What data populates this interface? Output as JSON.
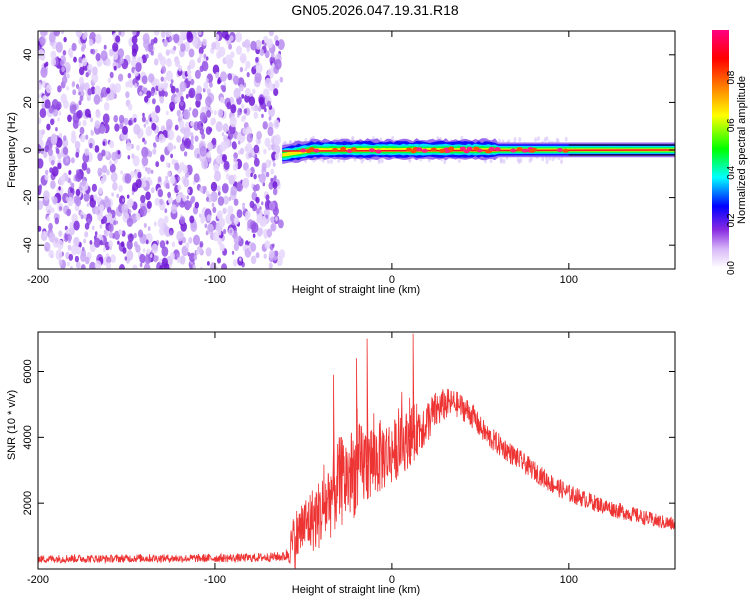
{
  "title": "GN05.2026.047.19.31.R18",
  "chart_data": [
    {
      "type": "heatmap",
      "name": "spectrogram",
      "xlabel": "Height of straight line (km)",
      "ylabel": "Frequency (Hz)",
      "xlim": [
        -200,
        160
      ],
      "ylim": [
        -50,
        50
      ],
      "xticks": [
        -200,
        -100,
        0,
        100
      ],
      "yticks": [
        -40,
        -20,
        0,
        20,
        40
      ],
      "noise_region_x": [
        -200,
        -62
      ],
      "signal_region_x": [
        -62,
        160
      ],
      "signal_center_frequency": 0,
      "colorbar": {
        "label": "Normalized spectral amplitude",
        "range": [
          0,
          1
        ],
        "ticks": [
          0.0,
          0.2,
          0.4,
          0.6,
          0.8
        ],
        "colormap": "rainbow",
        "colors": [
          "#ffffff",
          "#8a2be2",
          "#0000ff",
          "#00ffff",
          "#00ff00",
          "#ffff00",
          "#ff8000",
          "#ff0000",
          "#ff0080"
        ]
      }
    },
    {
      "type": "line",
      "name": "snr",
      "xlabel": "Height of straight line (km)",
      "ylabel": "SNR (10 * v/v)",
      "xlim": [
        -200,
        160
      ],
      "ylim": [
        0,
        7200
      ],
      "xticks": [
        -200,
        -100,
        0,
        100
      ],
      "yticks": [
        2000,
        4000,
        6000
      ],
      "color": "#ee3333",
      "x": [
        -200,
        -180,
        -160,
        -140,
        -120,
        -100,
        -80,
        -60,
        -55,
        -50,
        -45,
        -40,
        -35,
        -30,
        -25,
        -20,
        -15,
        -10,
        -5,
        0,
        5,
        10,
        15,
        20,
        25,
        30,
        35,
        40,
        45,
        50,
        55,
        60,
        70,
        80,
        90,
        100,
        110,
        120,
        130,
        140,
        150,
        160
      ],
      "values": [
        300,
        320,
        310,
        330,
        320,
        330,
        340,
        380,
        900,
        1300,
        1500,
        1700,
        2200,
        2600,
        2800,
        3000,
        3200,
        3300,
        3450,
        3550,
        3750,
        4000,
        4300,
        4500,
        4800,
        5000,
        5050,
        4900,
        4700,
        4300,
        4000,
        3800,
        3400,
        3000,
        2600,
        2300,
        2100,
        1900,
        1750,
        1600,
        1450,
        1350
      ],
      "noise_amplitude": [
        120,
        130,
        120,
        130,
        120,
        130,
        130,
        150,
        900,
        900,
        1000,
        1100,
        1300,
        1400,
        1400,
        1400,
        1300,
        1200,
        1100,
        1000,
        900,
        900,
        800,
        700,
        600,
        500,
        400,
        400,
        400,
        350,
        350,
        350,
        320,
        300,
        300,
        280,
        260,
        250,
        240,
        230,
        220,
        220
      ],
      "spikes": [
        {
          "x": -33,
          "y": 5900
        },
        {
          "x": -14,
          "y": 7000
        },
        {
          "x": 12,
          "y": 7150
        },
        {
          "x": 10,
          "y": 5200
        },
        {
          "x": -20,
          "y": 6400
        }
      ]
    }
  ]
}
